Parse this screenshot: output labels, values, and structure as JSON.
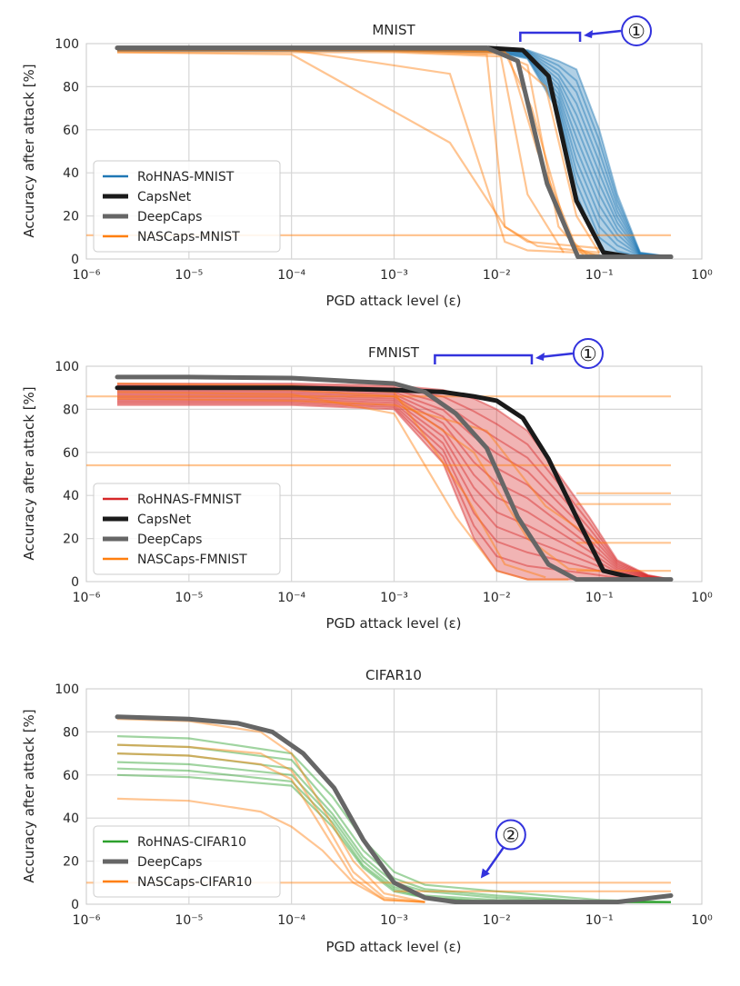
{
  "chart_data": [
    {
      "type": "line",
      "title": "MNIST",
      "xlabel": "PGD attack level (ε)",
      "ylabel": "Accuracy after attack [%]",
      "xscale": "log",
      "xlim": [
        1e-06,
        1
      ],
      "ylim": [
        0,
        100
      ],
      "xticks": [
        "10⁻⁶",
        "10⁻⁵",
        "10⁻⁴",
        "10⁻³",
        "10⁻²",
        "10⁻¹",
        "10⁰"
      ],
      "yticks": [
        "0",
        "20",
        "40",
        "60",
        "80",
        "100"
      ],
      "grid": true,
      "legend_position": "lower-left",
      "legend": [
        "RoHNAS-MNIST",
        "CapsNet",
        "DeepCaps",
        "NASCaps-MNIST"
      ],
      "annotation": {
        "label": "①",
        "eps_range": [
          0.017,
          0.065
        ],
        "accuracy": 98
      },
      "series": [
        {
          "name": "CapsNet",
          "color": "#1a1a1a",
          "x": [
            2e-06,
            1e-05,
            0.0001,
            0.001,
            0.008,
            0.018,
            0.032,
            0.06,
            0.11,
            0.2,
            0.5
          ],
          "y": [
            98,
            98,
            98,
            98,
            98,
            97,
            85,
            27,
            3,
            1,
            1
          ]
        },
        {
          "name": "DeepCaps",
          "color": "#666666",
          "x": [
            2e-06,
            1e-05,
            0.0001,
            0.001,
            0.008,
            0.016,
            0.031,
            0.062,
            0.2,
            0.5
          ],
          "y": [
            98,
            98,
            98,
            98,
            98,
            92,
            35,
            1,
            1,
            1
          ]
        },
        {
          "name": "RoHNAS-MNIST",
          "color": "#1f77b4",
          "band": {
            "x": [
              2e-06,
              1e-05,
              0.0001,
              0.001,
              0.01,
              0.02,
              0.04,
              0.06,
              0.1,
              0.15,
              0.25,
              0.5
            ],
            "lower": [
              96.5,
              96.5,
              96.5,
              96.5,
              96,
              93,
              68,
              30,
              5,
              1,
              1,
              1
            ],
            "upper": [
              98.5,
              98.5,
              98.5,
              98.5,
              98,
              97,
              92,
              88,
              60,
              30,
              3,
              1
            ]
          }
        },
        {
          "name": "NASCaps-MNIST",
          "color": "#ff7f0e",
          "individual_runs": [
            {
              "x": [
                2e-06,
                0.0001,
                0.0035,
                0.012,
                0.02,
                0.06,
                0.1
              ],
              "y": [
                98,
                97,
                86,
                8,
                4,
                3,
                2
              ]
            },
            {
              "x": [
                2e-06,
                0.0001,
                0.0035,
                0.012,
                0.02,
                0.06,
                0.1
              ],
              "y": [
                96,
                95,
                54,
                15,
                8,
                6,
                5
              ]
            },
            {
              "x": [
                2e-06,
                0.0001,
                0.008,
                0.012,
                0.025,
                0.06,
                0.1
              ],
              "y": [
                98,
                98,
                95,
                15,
                6,
                4,
                3
              ]
            },
            {
              "x": [
                2e-06,
                0.001,
                0.01,
                0.02,
                0.04,
                0.07
              ],
              "y": [
                97,
                97,
                96,
                90,
                15,
                2
              ]
            },
            {
              "x": [
                2e-06,
                0.001,
                0.012,
                0.022,
                0.05,
                0.08
              ],
              "y": [
                98,
                98,
                96,
                70,
                10,
                1
              ]
            },
            {
              "x": [
                2e-06,
                0.001,
                0.013,
                0.025,
                0.06,
                0.1
              ],
              "y": [
                97,
                97,
                95,
                50,
                5,
                1
              ]
            },
            {
              "x": [
                2e-06,
                0.001,
                0.011,
                0.02,
                0.045
              ],
              "y": [
                96,
                96,
                94,
                30,
                3
              ]
            },
            {
              "x": [
                2e-06,
                0.001,
                0.012,
                0.03,
                0.06,
                0.1
              ],
              "y": [
                98,
                98,
                96,
                80,
                20,
                3
              ]
            },
            {
              "x": [
                1e-06,
                0.5
              ],
              "y": [
                11,
                11
              ]
            }
          ]
        }
      ]
    },
    {
      "type": "line",
      "title": "FMNIST",
      "xlabel": "PGD attack level (ε)",
      "ylabel": "Accuracy after attack [%]",
      "xscale": "log",
      "xlim": [
        1e-06,
        1
      ],
      "ylim": [
        0,
        100
      ],
      "xticks": [
        "10⁻⁶",
        "10⁻⁵",
        "10⁻⁴",
        "10⁻³",
        "10⁻²",
        "10⁻¹",
        "10⁰"
      ],
      "yticks": [
        "0",
        "20",
        "40",
        "60",
        "80",
        "100"
      ],
      "grid": true,
      "legend_position": "lower-left",
      "legend": [
        "RoHNAS-FMNIST",
        "CapsNet",
        "DeepCaps",
        "NASCaps-FMNIST"
      ],
      "annotation": {
        "label": "①",
        "eps_range": [
          0.0025,
          0.022
        ],
        "accuracy": 94
      },
      "series": [
        {
          "name": "CapsNet",
          "color": "#1a1a1a",
          "x": [
            2e-06,
            1e-05,
            0.0001,
            0.001,
            0.003,
            0.006,
            0.01,
            0.018,
            0.032,
            0.06,
            0.11,
            0.25
          ],
          "y": [
            90,
            90,
            90,
            89,
            88,
            86,
            84,
            76,
            57,
            30,
            5,
            1
          ]
        },
        {
          "name": "DeepCaps",
          "color": "#666666",
          "x": [
            2e-06,
            1e-05,
            0.0001,
            0.001,
            0.002,
            0.004,
            0.008,
            0.016,
            0.032,
            0.06,
            0.5
          ],
          "y": [
            95,
            95,
            94.5,
            92,
            88,
            78,
            62,
            30,
            8,
            1,
            1
          ]
        },
        {
          "name": "RoHNAS-FMNIST",
          "color": "#d62728",
          "band": {
            "x": [
              2e-06,
              1e-05,
              0.0001,
              0.001,
              0.003,
              0.006,
              0.01,
              0.02,
              0.04,
              0.08,
              0.15,
              0.3,
              0.5
            ],
            "lower": [
              82,
              82,
              82,
              80,
              55,
              20,
              5,
              1,
              1,
              1,
              1,
              1,
              1
            ],
            "upper": [
              92,
              92,
              92,
              91,
              89,
              85,
              80,
              70,
              50,
              30,
              10,
              3,
              1
            ]
          }
        },
        {
          "name": "NASCaps-FMNIST",
          "color": "#ff7f0e",
          "individual_runs": [
            {
              "x": [
                2e-06,
                0.0001,
                0.001,
                0.004,
                0.01,
                0.02,
                0.05
              ],
              "y": [
                88,
                87,
                78,
                30,
                5,
                1,
                1
              ]
            },
            {
              "x": [
                2e-06,
                0.0001,
                0.001,
                0.005,
                0.012,
                0.03
              ],
              "y": [
                92,
                91,
                88,
                40,
                8,
                2
              ]
            },
            {
              "x": [
                2e-06,
                0.0001,
                0.001,
                0.006,
                0.02,
                0.05,
                0.1
              ],
              "y": [
                90,
                89,
                86,
                60,
                20,
                6,
                5
              ]
            },
            {
              "x": [
                2e-06,
                0.0001,
                0.001,
                0.008,
                0.03,
                0.1
              ],
              "y": [
                85,
                84,
                82,
                70,
                35,
                18
              ]
            },
            {
              "x": [
                1e-06,
                0.5
              ],
              "y": [
                54,
                54
              ]
            },
            {
              "x": [
                1e-06,
                0.5
              ],
              "y": [
                86,
                86
              ]
            },
            {
              "x": [
                0.06,
                0.5
              ],
              "y": [
                41,
                41
              ]
            },
            {
              "x": [
                0.06,
                0.5
              ],
              "y": [
                36,
                36
              ]
            },
            {
              "x": [
                0.06,
                0.5
              ],
              "y": [
                18,
                18
              ]
            },
            {
              "x": [
                0.06,
                0.5
              ],
              "y": [
                5,
                5
              ]
            }
          ]
        }
      ]
    },
    {
      "type": "line",
      "title": "CIFAR10",
      "xlabel": "PGD attack level (ε)",
      "ylabel": "Accuracy after attack [%]",
      "xscale": "log",
      "xlim": [
        1e-06,
        1
      ],
      "ylim": [
        0,
        100
      ],
      "xticks": [
        "10⁻⁶",
        "10⁻⁵",
        "10⁻⁴",
        "10⁻³",
        "10⁻²",
        "10⁻¹",
        "10⁰"
      ],
      "yticks": [
        "0",
        "20",
        "40",
        "60",
        "80",
        "100"
      ],
      "grid": true,
      "legend_position": "lower-left",
      "legend": [
        "RoHNAS-CIFAR10",
        "DeepCaps",
        "NASCaps-CIFAR10"
      ],
      "annotation": {
        "label": "②",
        "eps": 0.007,
        "accuracy": 12
      },
      "series": [
        {
          "name": "DeepCaps",
          "color": "#666666",
          "x": [
            2e-06,
            1e-05,
            3e-05,
            6.5e-05,
            0.00013,
            0.00026,
            0.0005,
            0.001,
            0.002,
            0.004,
            0.01,
            0.05,
            0.15,
            0.5
          ],
          "y": [
            87,
            86,
            84,
            80,
            70,
            54,
            30,
            10,
            3,
            1,
            1,
            1,
            1,
            4
          ]
        },
        {
          "name": "RoHNAS-CIFAR10",
          "color": "#2ca02c",
          "individual_runs": [
            {
              "x": [
                2e-06,
                1e-05,
                0.0001,
                0.00025,
                0.0005,
                0.001,
                0.002,
                0.01,
                0.1,
                0.5
              ],
              "y": [
                78,
                77,
                70,
                50,
                30,
                15,
                9,
                6,
                2,
                1
              ]
            },
            {
              "x": [
                2e-06,
                1e-05,
                0.0001,
                0.00025,
                0.0005,
                0.001,
                0.002,
                0.01,
                0.1,
                0.5
              ],
              "y": [
                74,
                73,
                67,
                45,
                25,
                12,
                7,
                4,
                1,
                1
              ]
            },
            {
              "x": [
                2e-06,
                1e-05,
                0.0001,
                0.00025,
                0.0005,
                0.001,
                0.002,
                0.01,
                0.1,
                0.5
              ],
              "y": [
                70,
                69,
                63,
                42,
                22,
                10,
                6,
                3,
                1,
                1
              ]
            },
            {
              "x": [
                2e-06,
                1e-05,
                0.0001,
                0.00025,
                0.0005,
                0.001,
                0.002,
                0.01,
                0.1,
                0.5
              ],
              "y": [
                66,
                65,
                60,
                40,
                20,
                8,
                4,
                2,
                1,
                1
              ]
            },
            {
              "x": [
                2e-06,
                1e-05,
                0.0001,
                0.00025,
                0.0005,
                0.001,
                0.002,
                0.01,
                0.1,
                0.5
              ],
              "y": [
                63,
                62,
                57,
                38,
                18,
                7,
                3,
                1,
                1,
                1
              ]
            },
            {
              "x": [
                2e-06,
                1e-05,
                0.0001,
                0.00025,
                0.0005,
                0.001,
                0.002,
                0.01,
                0.1,
                0.5
              ],
              "y": [
                60,
                59,
                55,
                36,
                17,
                6,
                3,
                1,
                1,
                1
              ]
            }
          ]
        },
        {
          "name": "NASCaps-CIFAR10",
          "color": "#ff7f0e",
          "individual_runs": [
            {
              "x": [
                2e-06,
                1e-05,
                5e-05,
                0.0001,
                0.0002,
                0.0004,
                0.0008,
                0.002
              ],
              "y": [
                86,
                85,
                80,
                70,
                45,
                20,
                5,
                1
              ]
            },
            {
              "x": [
                2e-06,
                1e-05,
                5e-05,
                0.0001,
                0.0002,
                0.0004,
                0.0008,
                0.002
              ],
              "y": [
                74,
                73,
                70,
                62,
                40,
                15,
                3,
                1
              ]
            },
            {
              "x": [
                2e-06,
                1e-05,
                5e-05,
                0.0001,
                0.0002,
                0.0004,
                0.0008,
                0.002
              ],
              "y": [
                70,
                69,
                65,
                58,
                35,
                12,
                2,
                1
              ]
            },
            {
              "x": [
                2e-06,
                1e-05,
                5e-05,
                0.0001,
                0.0002,
                0.0004,
                0.0008,
                0.002
              ],
              "y": [
                49,
                48,
                43,
                36,
                25,
                10,
                2,
                1
              ]
            },
            {
              "x": [
                1e-06,
                0.5
              ],
              "y": [
                10,
                10
              ]
            },
            {
              "x": [
                0.001,
                0.5
              ],
              "y": [
                6,
                6
              ]
            }
          ]
        }
      ]
    }
  ]
}
